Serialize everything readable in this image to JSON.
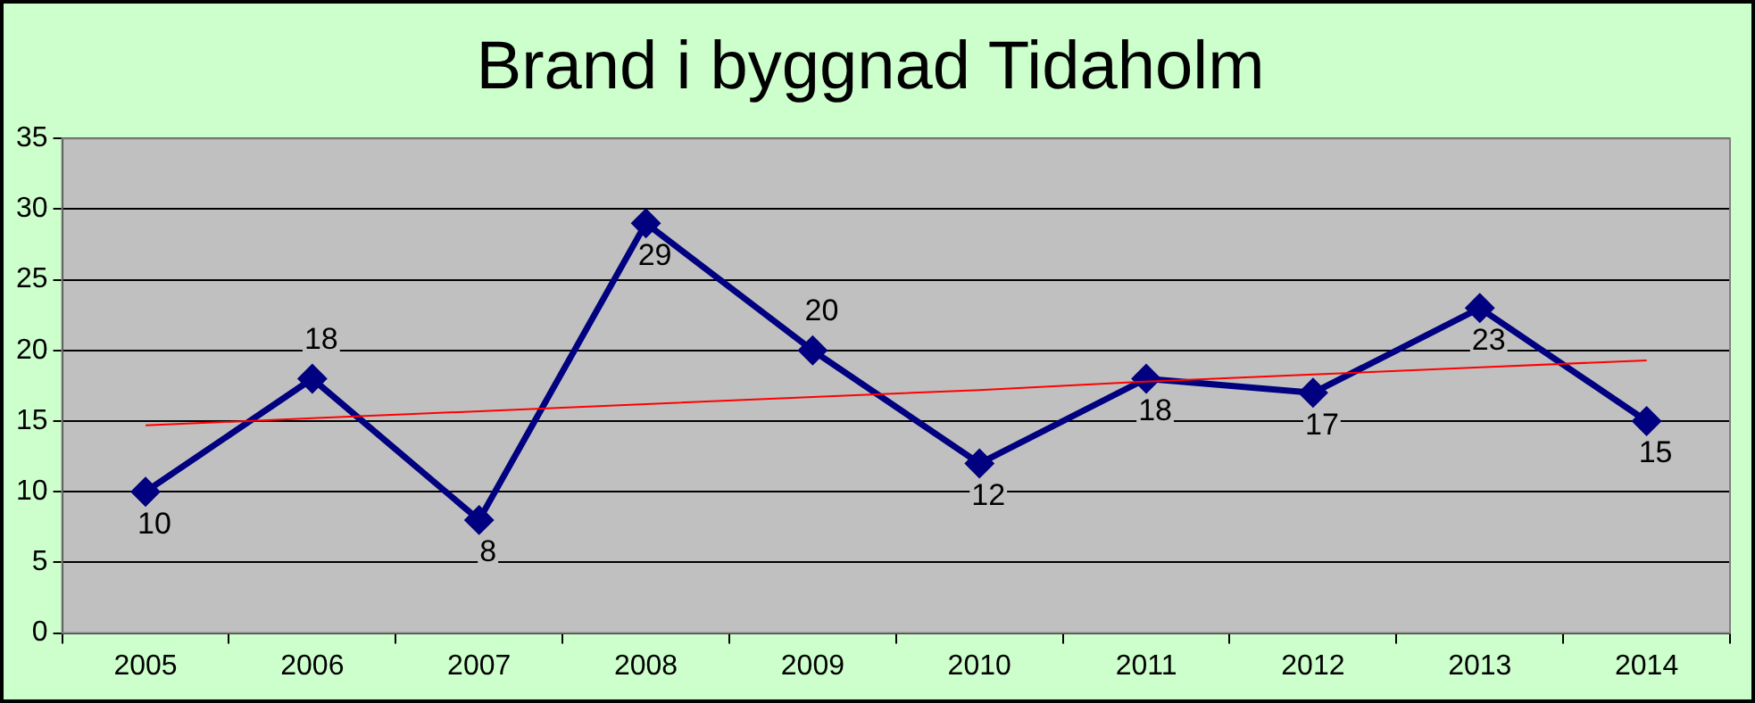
{
  "chart_data": {
    "type": "line",
    "title": "Brand i byggnad Tidaholm",
    "categories": [
      "2005",
      "2006",
      "2007",
      "2008",
      "2009",
      "2010",
      "2011",
      "2012",
      "2013",
      "2014"
    ],
    "series": [
      {
        "color": "#000080",
        "values": [
          10,
          18,
          8,
          29,
          20,
          12,
          18,
          17,
          23,
          15
        ],
        "value_labels": [
          "10",
          "18",
          "8",
          "29",
          "20",
          "12",
          "18",
          "17",
          "23",
          "15"
        ],
        "marker": "diamond"
      },
      {
        "type": "line",
        "color": "#ff0000",
        "values": [
          14.7,
          15.2,
          15.7,
          16.2,
          16.7,
          17.2,
          17.8,
          18.3,
          18.8,
          19.3
        ],
        "marker": "none"
      }
    ],
    "ylim": [
      0,
      35
    ],
    "yticks": [
      0,
      5,
      10,
      15,
      20,
      25,
      30,
      35
    ],
    "grid": "y",
    "legend": false
  }
}
